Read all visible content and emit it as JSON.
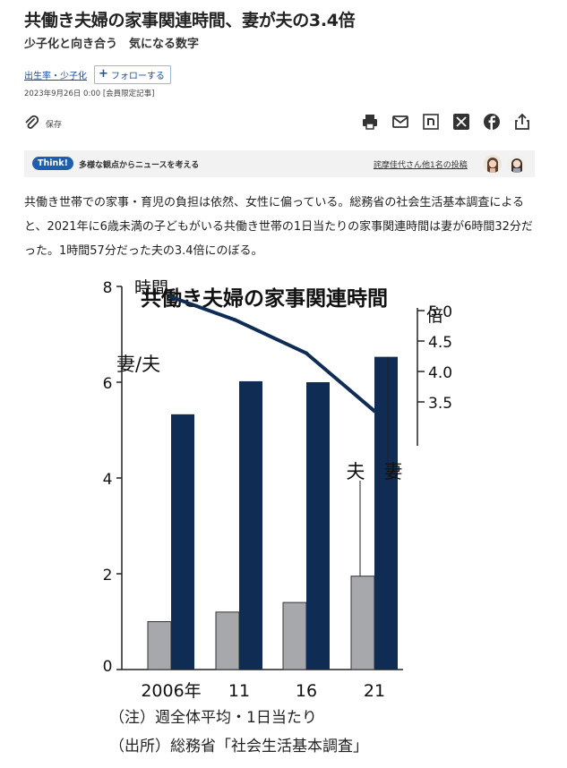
{
  "header": {
    "title": "共働き夫婦の家事関連時間、妻が夫の3.4倍",
    "subtitle": "少子化と向き合う　気になる数字"
  },
  "meta": {
    "topic_tag": "出生率・少子化",
    "follow_label": "フォローする",
    "date_line": "2023年9月26日 0:00 [会員限定記事]"
  },
  "toolbar": {
    "save_label": "保存",
    "share_icons": [
      "print-icon",
      "mail-icon",
      "note-icon",
      "x-icon",
      "facebook-icon",
      "share-icon"
    ]
  },
  "think": {
    "badge": "Think!",
    "lead": "多様な観点からニュースを考える",
    "link": "詫摩佳代さん他1名の投稿"
  },
  "article": {
    "paragraph": "共働き世帯での家事・育児の負担は依然、女性に偏っている。総務省の社会生活基本調査によると、2021年に6歳未満の子どもがいる共働き世帯の1日当たりの家事関連時間は妻が6時間32分だった。1時間57分だった夫の3.4倍にのぼる。"
  },
  "chart_data": [
    {
      "type": "line",
      "title": "共働き夫婦の家事関連時間",
      "series": [
        {
          "name": "妻/夫",
          "values": [
            5.23,
            4.85,
            4.3,
            3.35
          ]
        }
      ],
      "x": [
        "2006年",
        "11",
        "16",
        "21"
      ],
      "ylabel": "倍",
      "yticks": [
        3.5,
        4.0,
        4.5,
        5.0
      ],
      "yticks_text": [
        "3.5",
        "4.0",
        "4.5",
        "5.0"
      ],
      "color": "#0f2c55"
    },
    {
      "type": "bar",
      "categories": [
        "2006年",
        "11",
        "16",
        "21"
      ],
      "series": [
        {
          "name": "夫",
          "values": [
            1.0,
            1.2,
            1.4,
            1.95
          ],
          "color": "#a7a8ab"
        },
        {
          "name": "妻",
          "values": [
            5.33,
            6.02,
            6.0,
            6.53
          ],
          "color": "#0f2c55"
        }
      ],
      "ylabel": "時間",
      "ylim": [
        0,
        8
      ],
      "yticks": [
        0,
        2,
        4,
        6,
        8
      ],
      "yticks_text": [
        "0",
        "2",
        "4",
        "6",
        "8"
      ],
      "notes": [
        "（注）週全体平均・1日当たり",
        "（出所）総務省「社会生活基本調査」"
      ]
    }
  ]
}
